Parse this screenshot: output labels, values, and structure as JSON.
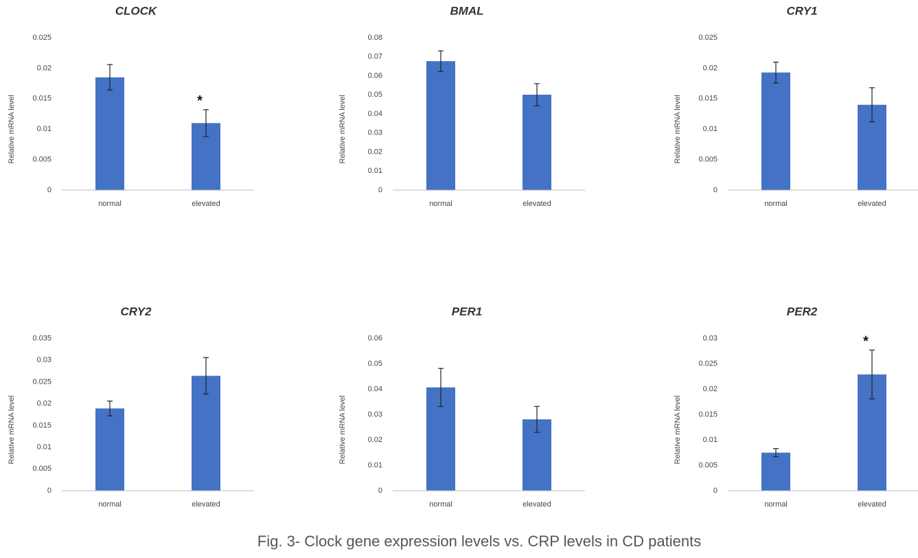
{
  "chart_data": [
    {
      "type": "bar",
      "title": "CLOCK",
      "ylabel": "Relative mRNA level",
      "categories": [
        "normal",
        "elevated"
      ],
      "values": [
        0.0185,
        0.011
      ],
      "errors": [
        0.0021,
        0.0022
      ],
      "significance": [
        null,
        "*"
      ],
      "color": "#4472c4",
      "ylim": [
        0,
        0.025
      ],
      "yticks": [
        0,
        0.005,
        0.01,
        0.015,
        0.02,
        0.025
      ]
    },
    {
      "type": "bar",
      "title": "BMAL",
      "ylabel": "Relative mRNA level",
      "categories": [
        "normal",
        "elevated"
      ],
      "values": [
        0.0677,
        0.0501
      ],
      "errors": [
        0.0054,
        0.0058
      ],
      "significance": [
        null,
        null
      ],
      "color": "#4472c4",
      "ylim": [
        0,
        0.08
      ],
      "yticks": [
        0,
        0.01,
        0.02,
        0.03,
        0.04,
        0.05,
        0.06,
        0.07,
        0.08
      ]
    },
    {
      "type": "bar",
      "title": "CRY1",
      "ylabel": "Relative mRNA level",
      "categories": [
        "normal",
        "elevated"
      ],
      "values": [
        0.0193,
        0.014
      ],
      "errors": [
        0.0017,
        0.0028
      ],
      "significance": [
        null,
        null
      ],
      "color": "#4472c4",
      "ylim": [
        0,
        0.025
      ],
      "yticks": [
        0,
        0.005,
        0.01,
        0.015,
        0.02,
        0.025
      ]
    },
    {
      "type": "bar",
      "title": "CRY2",
      "ylabel": "Relative mRNA level",
      "categories": [
        "normal",
        "elevated"
      ],
      "values": [
        0.0189,
        0.0264
      ],
      "errors": [
        0.0017,
        0.0042
      ],
      "significance": [
        null,
        null
      ],
      "color": "#4472c4",
      "ylim": [
        0,
        0.035
      ],
      "yticks": [
        0,
        0.005,
        0.01,
        0.015,
        0.02,
        0.025,
        0.03,
        0.035
      ]
    },
    {
      "type": "bar",
      "title": "PER1",
      "ylabel": "Relative mRNA level",
      "categories": [
        "normal",
        "elevated"
      ],
      "values": [
        0.0407,
        0.0281
      ],
      "errors": [
        0.0075,
        0.0051
      ],
      "significance": [
        null,
        null
      ],
      "color": "#4472c4",
      "ylim": [
        0,
        0.06
      ],
      "yticks": [
        0,
        0.01,
        0.02,
        0.03,
        0.04,
        0.05,
        0.06
      ]
    },
    {
      "type": "bar",
      "title": "PER2",
      "ylabel": "Relative mRNA level",
      "categories": [
        "normal",
        "elevated"
      ],
      "values": [
        0.0075,
        0.0229
      ],
      "errors": [
        0.0008,
        0.0048
      ],
      "significance": [
        null,
        "*"
      ],
      "color": "#4472c4",
      "ylim": [
        0,
        0.03
      ],
      "yticks": [
        0,
        0.005,
        0.01,
        0.015,
        0.02,
        0.025,
        0.03
      ]
    }
  ],
  "caption": "Fig. 3- Clock gene expression levels vs. CRP levels in CD patients"
}
